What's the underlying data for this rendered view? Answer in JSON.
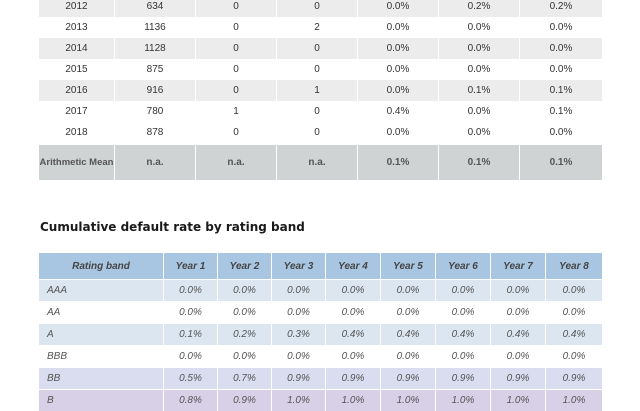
{
  "annual_table": {
    "rows": [
      [
        "2012",
        "634",
        "0",
        "0",
        "0.0%",
        "0.2%",
        "0.2%"
      ],
      [
        "2013",
        "1136",
        "0",
        "2",
        "0.0%",
        "0.0%",
        "0.0%"
      ],
      [
        "2014",
        "1128",
        "0",
        "0",
        "0.0%",
        "0.0%",
        "0.0%"
      ],
      [
        "2015",
        "875",
        "0",
        "0",
        "0.0%",
        "0.0%",
        "0.0%"
      ],
      [
        "2016",
        "916",
        "0",
        "1",
        "0.0%",
        "0.1%",
        "0.1%"
      ],
      [
        "2017",
        "780",
        "1",
        "0",
        "0.4%",
        "0.0%",
        "0.1%"
      ],
      [
        "2018",
        "878",
        "0",
        "0",
        "0.0%",
        "0.0%",
        "0.0%"
      ]
    ],
    "mean_row": [
      "Arithmetic Mean",
      "n.a.",
      "n.a.",
      "n.a.",
      "0.1%",
      "0.1%",
      "0.1%"
    ]
  },
  "cumulative": {
    "title": "Cumulative default rate by rating band",
    "headers": [
      "Rating band",
      "Year 1",
      "Year 2",
      "Year 3",
      "Year 4",
      "Year 5",
      "Year 6",
      "Year 7",
      "Year 8"
    ],
    "rows": [
      [
        "AAA",
        "0.0%",
        "0.0%",
        "0.0%",
        "0.0%",
        "0.0%",
        "0.0%",
        "0.0%",
        "0.0%"
      ],
      [
        "AA",
        "0.0%",
        "0.0%",
        "0.0%",
        "0.0%",
        "0.0%",
        "0.0%",
        "0.0%",
        "0.0%"
      ],
      [
        "A",
        "0.1%",
        "0.2%",
        "0.3%",
        "0.4%",
        "0.4%",
        "0.4%",
        "0.4%",
        "0.4%"
      ],
      [
        "BBB",
        "0.0%",
        "0.0%",
        "0.0%",
        "0.0%",
        "0.0%",
        "0.0%",
        "0.0%",
        "0.0%"
      ],
      [
        "BB",
        "0.5%",
        "0.7%",
        "0.9%",
        "0.9%",
        "0.9%",
        "0.9%",
        "0.9%",
        "0.9%"
      ],
      [
        "B",
        "0.8%",
        "0.9%",
        "1.0%",
        "1.0%",
        "1.0%",
        "1.0%",
        "1.0%",
        "1.0%"
      ]
    ]
  }
}
